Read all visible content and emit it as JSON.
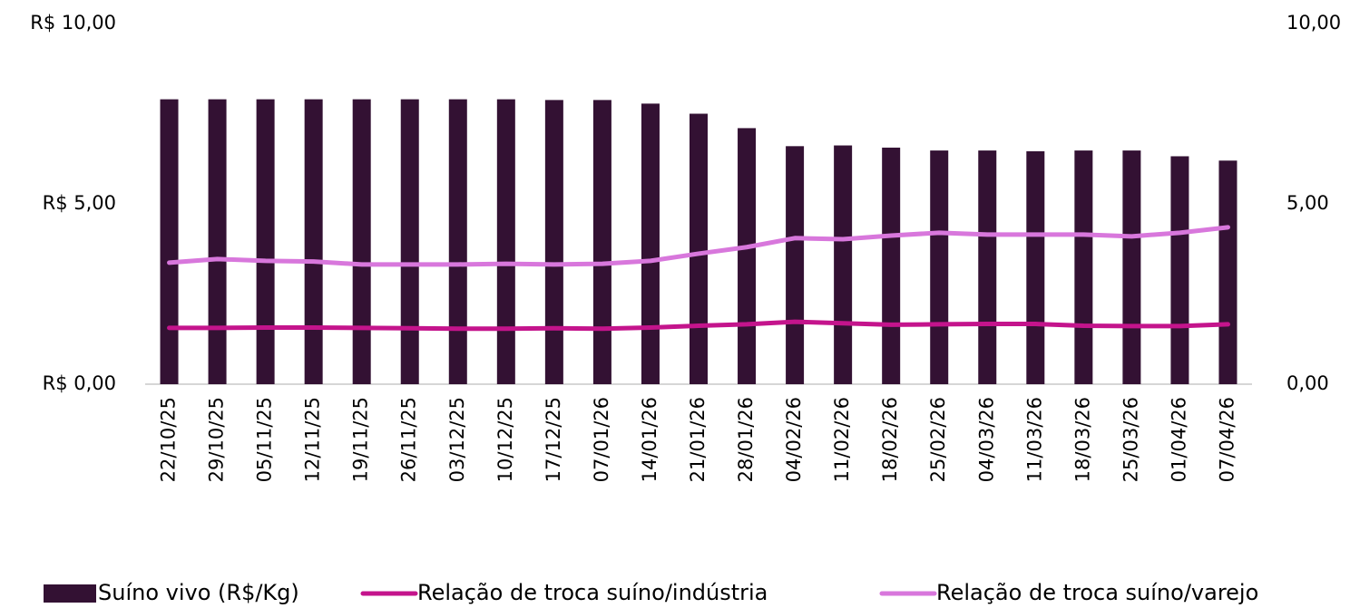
{
  "chart_data": {
    "type": "bar_line",
    "categories": [
      "22/10/25",
      "29/10/25",
      "05/11/25",
      "12/11/25",
      "19/11/25",
      "26/11/25",
      "03/12/25",
      "10/12/25",
      "17/12/25",
      "07/01/26",
      "14/01/26",
      "21/01/26",
      "28/01/26",
      "04/02/26",
      "11/02/26",
      "18/02/26",
      "25/02/26",
      "04/03/26",
      "11/03/26",
      "18/03/26",
      "25/03/26",
      "01/04/26",
      "07/04/26"
    ],
    "series": [
      {
        "name": "Suíno vivo (R$/Kg)",
        "type": "bar",
        "color": "#331133",
        "values": [
          7.9,
          7.9,
          7.9,
          7.9,
          7.9,
          7.9,
          7.9,
          7.9,
          7.88,
          7.88,
          7.78,
          7.5,
          7.1,
          6.6,
          6.62,
          6.56,
          6.48,
          6.48,
          6.46,
          6.48,
          6.48,
          6.32,
          6.2
        ]
      },
      {
        "name": "Relação de troca suíno/indústria",
        "type": "line",
        "axis": "y2",
        "color": "#c4148c",
        "values": [
          1.56,
          1.56,
          1.57,
          1.57,
          1.56,
          1.55,
          1.54,
          1.54,
          1.55,
          1.54,
          1.57,
          1.62,
          1.66,
          1.73,
          1.69,
          1.65,
          1.66,
          1.67,
          1.67,
          1.62,
          1.61,
          1.61,
          1.66
        ]
      },
      {
        "name": "Relação de troca suíno/varejo",
        "type": "line",
        "axis": "y2",
        "color": "#d877dc",
        "values": [
          3.37,
          3.47,
          3.42,
          3.4,
          3.32,
          3.32,
          3.32,
          3.34,
          3.32,
          3.34,
          3.42,
          3.62,
          3.8,
          4.05,
          4.02,
          4.12,
          4.2,
          4.15,
          4.15,
          4.15,
          4.1,
          4.2,
          4.35
        ]
      }
    ],
    "ylim": [
      0,
      10
    ],
    "yticks": [
      {
        "value": 0,
        "label": "R$ 0,00"
      },
      {
        "value": 5,
        "label": "R$ 5,00"
      },
      {
        "value": 10,
        "label": "R$ 10,00"
      }
    ],
    "y2lim": [
      0,
      10
    ],
    "y2ticks": [
      {
        "value": 0,
        "label": "0,00"
      },
      {
        "value": 5,
        "label": "5,00"
      },
      {
        "value": 10,
        "label": "10,00"
      }
    ],
    "legend": "bottom"
  }
}
